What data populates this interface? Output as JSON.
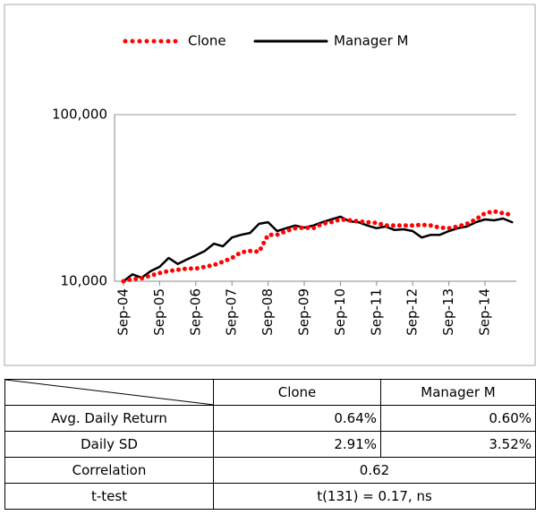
{
  "chart_data": {
    "type": "line",
    "yscale": "log",
    "legend": "top",
    "categories": [
      "Sep-04",
      null,
      null,
      null,
      "Sep-05",
      null,
      null,
      null,
      "Sep-06",
      null,
      null,
      null,
      "Sep-07",
      null,
      null,
      null,
      "Sep-08",
      null,
      null,
      null,
      "Sep-09",
      null,
      null,
      null,
      "Sep-10",
      null,
      null,
      null,
      "Sep-11",
      null,
      null,
      null,
      "Sep-12",
      null,
      null,
      null,
      "Sep-13",
      null,
      null,
      null,
      "Sep-14",
      null,
      null,
      null
    ],
    "series": [
      {
        "name": "Clone",
        "color": "#ff0000",
        "style": "dotted",
        "values": [
          10000,
          10300,
          10400,
          10800,
          11200,
          11500,
          11700,
          11900,
          11900,
          12200,
          12500,
          13100,
          13800,
          14900,
          15200,
          15000,
          19000,
          19000,
          20000,
          20800,
          21000,
          20800,
          22100,
          22600,
          23500,
          23200,
          22900,
          22600,
          22400,
          21600,
          21600,
          21600,
          21600,
          21800,
          21600,
          21000,
          20800,
          21300,
          22100,
          23500,
          25600,
          26300,
          25600,
          25000
        ]
      },
      {
        "name": "Manager M",
        "color": "#000000",
        "style": "solid",
        "values": [
          10000,
          11000,
          10500,
          11500,
          12200,
          13800,
          12700,
          13500,
          14300,
          15200,
          16800,
          16200,
          18300,
          19000,
          19500,
          22100,
          22600,
          20000,
          20800,
          21600,
          21000,
          21600,
          22600,
          23500,
          24400,
          22900,
          22600,
          21600,
          20800,
          21300,
          20300,
          20500,
          20000,
          18300,
          19000,
          19000,
          20000,
          20800,
          21300,
          22600,
          23500,
          23200,
          23800,
          22600
        ]
      }
    ],
    "ylim": [
      10000,
      100000
    ],
    "yticks": [
      {
        "value": 10000,
        "label": "10,000"
      },
      {
        "value": 100000,
        "label": "100,000"
      }
    ],
    "grid": true
  },
  "table": {
    "columns": [
      "Clone",
      "Manager M"
    ],
    "rows": [
      {
        "label": "Avg. Daily Return",
        "cells": [
          "0.64%",
          "0.60%"
        ]
      },
      {
        "label": "Daily SD",
        "cells": [
          "2.91%",
          "3.52%"
        ]
      },
      {
        "label": "Correlation",
        "cells": [
          "0.62"
        ]
      },
      {
        "label": "t-test",
        "cells": [
          "t(131) = 0.17, ns"
        ]
      }
    ]
  }
}
